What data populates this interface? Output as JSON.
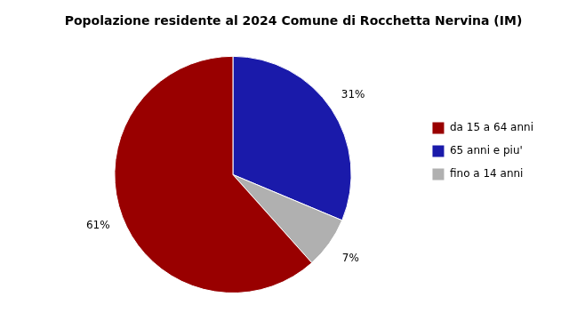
{
  "chart_data": {
    "type": "pie",
    "title": "Popolazione residente al 2024 Comune di Rocchetta Nervina (IM)",
    "categories": [
      "65 anni e piu'",
      "fino a 14 anni",
      "da 15 a 64 anni"
    ],
    "values": [
      31,
      7,
      61
    ],
    "value_labels": [
      "31%",
      "7%",
      "61%"
    ],
    "colors": [
      "#1a1aaa",
      "#b0b0b0",
      "#990000"
    ],
    "data_labels": true,
    "legend": "right"
  }
}
